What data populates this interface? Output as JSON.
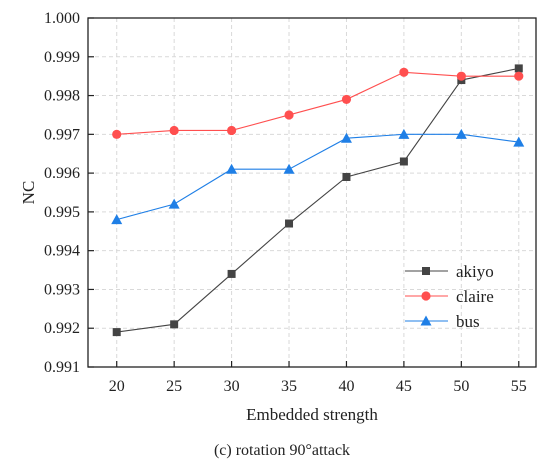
{
  "chart_data": {
    "type": "line",
    "x": [
      20,
      25,
      30,
      35,
      40,
      45,
      50,
      55
    ],
    "series": [
      {
        "name": "akiyo",
        "color": "#444444",
        "marker": "square",
        "values": [
          0.9919,
          0.9921,
          0.9934,
          0.9947,
          0.9959,
          0.9963,
          0.9984,
          0.9987
        ]
      },
      {
        "name": "claire",
        "color": "#ff4f4f",
        "marker": "circle",
        "values": [
          0.997,
          0.9971,
          0.9971,
          0.9975,
          0.9979,
          0.9986,
          0.9985,
          0.9985
        ]
      },
      {
        "name": "bus",
        "color": "#1f7fe6",
        "marker": "triangle",
        "values": [
          0.9948,
          0.9952,
          0.9961,
          0.9961,
          0.9969,
          0.997,
          0.997,
          0.9968
        ]
      }
    ],
    "xlabel": "Embedded strength",
    "ylabel": "NC",
    "xlim": [
      17.5,
      56.5
    ],
    "ylim": [
      0.991,
      1.0
    ],
    "yticks": [
      "0.991",
      "0.992",
      "0.993",
      "0.994",
      "0.995",
      "0.996",
      "0.997",
      "0.998",
      "0.999",
      "1.000"
    ],
    "xticks": [
      "20",
      "25",
      "30",
      "35",
      "40",
      "45",
      "50",
      "55"
    ],
    "grid": true,
    "legend_position": "bottom-right"
  },
  "caption": "(c) rotation 90°attack"
}
